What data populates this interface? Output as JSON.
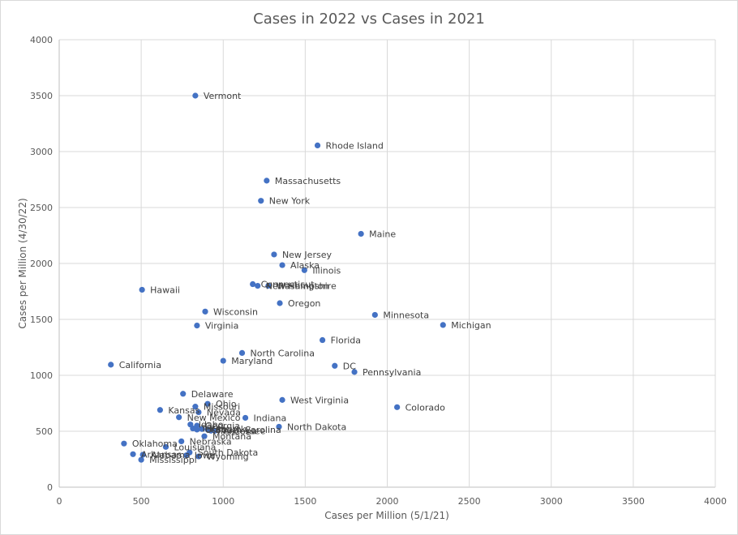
{
  "chart_data": {
    "type": "scatter",
    "title": "Cases in 2022 vs Cases in 2021",
    "xlabel": "Cases per Million (5/1/21)",
    "ylabel": "Cases per Million (4/30/22)",
    "xlim": [
      0,
      4000
    ],
    "ylim": [
      0,
      4000
    ],
    "xticks": [
      0,
      500,
      1000,
      1500,
      2000,
      2500,
      3000,
      3500,
      4000
    ],
    "yticks": [
      0,
      500,
      1000,
      1500,
      2000,
      2500,
      3000,
      3500,
      4000
    ],
    "grid": true,
    "marker_color": "#4472C4",
    "points": [
      {
        "label": "Vermont",
        "x": 830,
        "y": 3500
      },
      {
        "label": "Rhode Island",
        "x": 1575,
        "y": 3055
      },
      {
        "label": "Massachusetts",
        "x": 1265,
        "y": 2740
      },
      {
        "label": "New York",
        "x": 1230,
        "y": 2560
      },
      {
        "label": "Maine",
        "x": 1840,
        "y": 2265
      },
      {
        "label": "New Jersey",
        "x": 1310,
        "y": 2080
      },
      {
        "label": "Alaska",
        "x": 1360,
        "y": 1985
      },
      {
        "label": "Illinois",
        "x": 1495,
        "y": 1940
      },
      {
        "label": "Connecticut",
        "x": 1180,
        "y": 1815
      },
      {
        "label": "New Hampshire",
        "x": 1210,
        "y": 1800
      },
      {
        "label": "Washington",
        "x": 1275,
        "y": 1800
      },
      {
        "label": "Hawaii",
        "x": 505,
        "y": 1765
      },
      {
        "label": "Oregon",
        "x": 1345,
        "y": 1645
      },
      {
        "label": "Wisconsin",
        "x": 890,
        "y": 1570
      },
      {
        "label": "Minnesota",
        "x": 1925,
        "y": 1540
      },
      {
        "label": "Virginia",
        "x": 840,
        "y": 1445
      },
      {
        "label": "Michigan",
        "x": 2340,
        "y": 1450
      },
      {
        "label": "Florida",
        "x": 1605,
        "y": 1315
      },
      {
        "label": "North Carolina",
        "x": 1115,
        "y": 1200
      },
      {
        "label": "Maryland",
        "x": 1000,
        "y": 1130
      },
      {
        "label": "California",
        "x": 315,
        "y": 1095
      },
      {
        "label": "DC",
        "x": 1680,
        "y": 1085
      },
      {
        "label": "Pennsylvania",
        "x": 1800,
        "y": 1030
      },
      {
        "label": "Delaware",
        "x": 755,
        "y": 835
      },
      {
        "label": "West Virginia",
        "x": 1360,
        "y": 780
      },
      {
        "label": "Ohio",
        "x": 905,
        "y": 745
      },
      {
        "label": "Missouri",
        "x": 830,
        "y": 720
      },
      {
        "label": "Colorado",
        "x": 2060,
        "y": 715
      },
      {
        "label": "Kansas",
        "x": 615,
        "y": 690
      },
      {
        "label": "Nevada",
        "x": 850,
        "y": 670
      },
      {
        "label": "New Mexico",
        "x": 730,
        "y": 625
      },
      {
        "label": "Indiana",
        "x": 1135,
        "y": 620
      },
      {
        "label": "Idaho",
        "x": 800,
        "y": 560
      },
      {
        "label": "Georgia",
        "x": 840,
        "y": 550
      },
      {
        "label": "North Dakota",
        "x": 1340,
        "y": 540
      },
      {
        "label": "Texas",
        "x": 815,
        "y": 525
      },
      {
        "label": "Kentucky",
        "x": 870,
        "y": 520
      },
      {
        "label": "Utah",
        "x": 840,
        "y": 515
      },
      {
        "label": "South Carolina",
        "x": 905,
        "y": 515
      },
      {
        "label": "Tennessee",
        "x": 925,
        "y": 505
      },
      {
        "label": "Arizona",
        "x": 950,
        "y": 505
      },
      {
        "label": "Montana",
        "x": 885,
        "y": 455
      },
      {
        "label": "Nebraska",
        "x": 745,
        "y": 410
      },
      {
        "label": "Oklahoma",
        "x": 395,
        "y": 390
      },
      {
        "label": "Louisiana",
        "x": 650,
        "y": 360
      },
      {
        "label": "South Dakota",
        "x": 795,
        "y": 310
      },
      {
        "label": "Arkansas",
        "x": 450,
        "y": 295
      },
      {
        "label": "Alabama",
        "x": 510,
        "y": 290
      },
      {
        "label": "Iowa",
        "x": 775,
        "y": 285
      },
      {
        "label": "Wyoming",
        "x": 850,
        "y": 275
      },
      {
        "label": "Mississippi",
        "x": 500,
        "y": 245
      }
    ]
  }
}
